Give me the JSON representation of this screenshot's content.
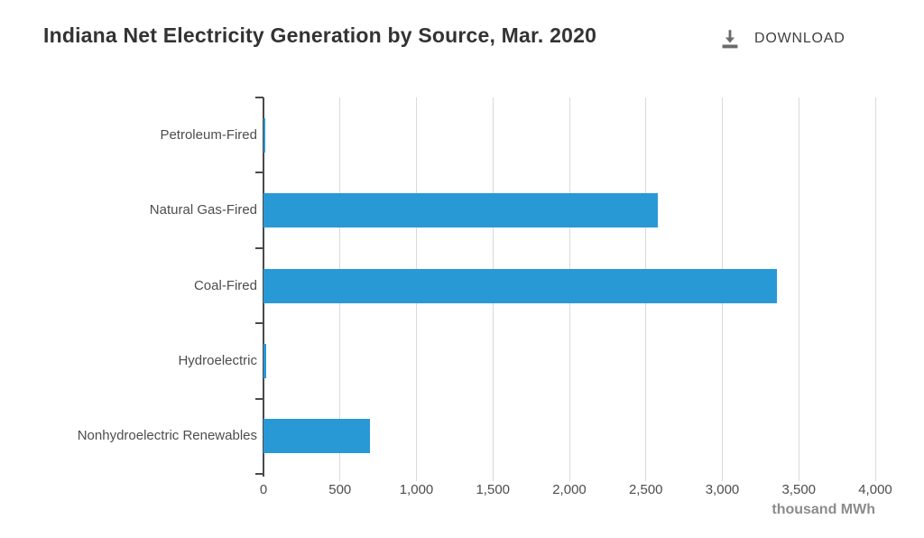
{
  "header": {
    "title": "Indiana Net Electricity Generation by Source, Mar. 2020",
    "download_label": "DOWNLOAD",
    "download_icon": "download-icon"
  },
  "chart_data": {
    "type": "bar",
    "orientation": "horizontal",
    "title": "Indiana Net Electricity Generation by Source, Mar. 2020",
    "categories": [
      "Petroleum-Fired",
      "Natural Gas-Fired",
      "Coal-Fired",
      "Hydroelectric",
      "Nonhydroelectric Renewables"
    ],
    "values": [
      7,
      2580,
      3355,
      20,
      695
    ],
    "xlabel": "thousand MWh",
    "xlim": [
      0,
      4000
    ],
    "xtick_values": [
      0,
      500,
      1000,
      1500,
      2000,
      2500,
      3000,
      3500,
      4000
    ],
    "xtick_labels": [
      "0",
      "500",
      "1,000",
      "1,500",
      "2,000",
      "2,500",
      "3,000",
      "3,500",
      "4,000"
    ],
    "grid": true,
    "legend": false,
    "bar_color": "#2999D6"
  },
  "colors": {
    "background": "#ffffff",
    "bar": "#2999D6",
    "axis": "#4a4a4a",
    "gridline": "#d9d9d9",
    "title_text": "#333333",
    "label_text": "#4d4d4d",
    "unit_text": "#8c8c8c",
    "download_text": "#3f3f3f",
    "download_icon": "#6b6b6b"
  }
}
